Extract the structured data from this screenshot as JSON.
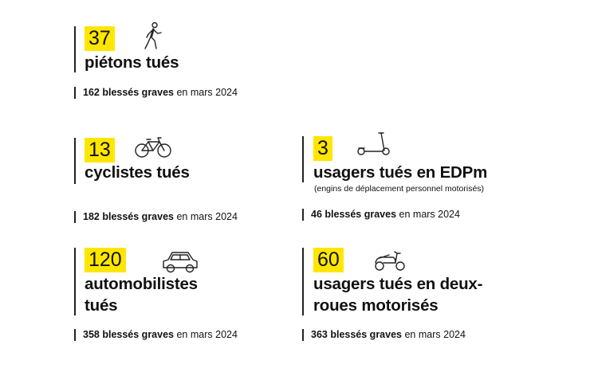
{
  "accent_color": "#ffe600",
  "items": [
    {
      "number": "37",
      "icon": "pedestrian-icon",
      "label_line1": "piétons tués",
      "label_line2": "",
      "note": "",
      "stat_count": "162",
      "stat_bold": "blessés graves",
      "stat_rest": "en mars 2024"
    },
    {
      "number": "13",
      "icon": "bicycle-icon",
      "label_line1": "cyclistes tués",
      "label_line2": "",
      "note": "",
      "stat_count": "182",
      "stat_bold": "blessés graves",
      "stat_rest": "en mars 2024"
    },
    {
      "number": "3",
      "icon": "scooter-icon",
      "label_line1": "usagers tués en EDPm",
      "label_line2": "",
      "note": "(engins de déplacement personnel motorisés)",
      "stat_count": "46",
      "stat_bold": "blessés graves",
      "stat_rest": "en mars 2024"
    },
    {
      "number": "120",
      "icon": "car-icon",
      "label_line1": "automobilistes",
      "label_line2": "tués",
      "note": "",
      "stat_count": "358",
      "stat_bold": "blessés graves",
      "stat_rest": "en mars 2024"
    },
    {
      "number": "60",
      "icon": "moped-icon",
      "label_line1": "usagers tués en deux-",
      "label_line2": "roues motorisés",
      "note": "",
      "stat_count": "363",
      "stat_bold": "blessés graves",
      "stat_rest": "en mars 2024"
    }
  ]
}
